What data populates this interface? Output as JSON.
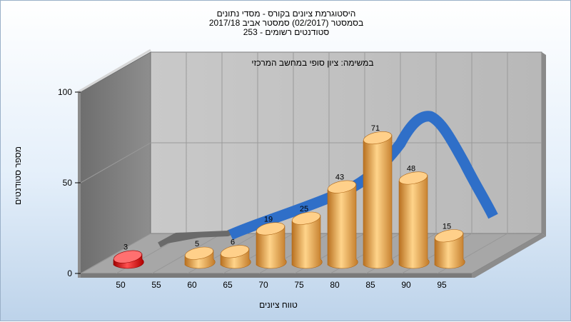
{
  "chart_data": {
    "type": "bar",
    "title": [
      "היסטוגרמת ציונים בקורס - מסדי נתונים",
      "בסמסטר  (02/2017)  סמסטר אביב 2017/18",
      "253 - סטודנטים רשומים"
    ],
    "annotation": "במשימה: ציון סופי במחשב המרכזי",
    "xlabel": "טווח ציונים",
    "ylabel": "מספר סטודנטים",
    "ylim": [
      0,
      100
    ],
    "y_ticks": [
      "0",
      "50",
      "100"
    ],
    "x_ticks": [
      "50",
      "55",
      "60",
      "65",
      "70",
      "75",
      "80",
      "85",
      "90",
      "95"
    ],
    "bars": [
      {
        "x": 50,
        "value": 3,
        "label": "3",
        "color": "#e01010"
      },
      {
        "x": 60,
        "value": 5,
        "label": "5",
        "color": "#f0a040"
      },
      {
        "x": 65,
        "value": 6,
        "label": "6",
        "color": "#f0a040"
      },
      {
        "x": 70,
        "value": 19,
        "label": "19",
        "color": "#f0a040"
      },
      {
        "x": 75,
        "value": 25,
        "label": "25",
        "color": "#f0a040"
      },
      {
        "x": 80,
        "value": 43,
        "label": "43",
        "color": "#f0a040"
      },
      {
        "x": 85,
        "value": 71,
        "label": "71",
        "color": "#f0a040"
      },
      {
        "x": 90,
        "value": 48,
        "label": "48",
        "color": "#f0a040"
      },
      {
        "x": 95,
        "value": 15,
        "label": "15",
        "color": "#f0a040"
      }
    ],
    "curve_color": "#2f6fc8",
    "grid": true
  }
}
